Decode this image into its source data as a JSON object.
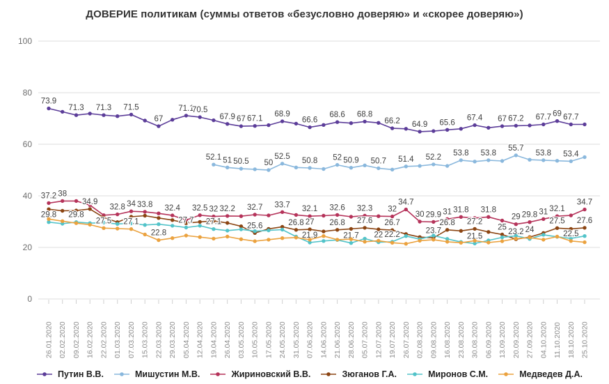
{
  "title": "ДОВЕРИЕ политикам (суммы ответов «безусловно доверяю» и «скорее доверяю»)",
  "chart_data": {
    "type": "line",
    "title": "ДОВЕРИЕ политикам (суммы ответов «безусловно доверяю» и «скорее доверяю»)",
    "xlabel": "",
    "ylabel": "",
    "ylim": [
      0,
      100
    ],
    "y_ticks": [
      0,
      20,
      40,
      60,
      80,
      100
    ],
    "grid": "horizontal",
    "legend_position": "bottom",
    "x": [
      "26.01.2020",
      "02.02.2020",
      "09.02.2020",
      "16.02.2020",
      "22.02.2020",
      "01.03.2020",
      "07.03.2020",
      "15.03.2020",
      "22.03.2020",
      "29.03.2020",
      "05.04.2020",
      "12.04.2020",
      "19.04.2020",
      "26.04.2020",
      "03.05.2020",
      "10.05.2020",
      "17.05.2020",
      "24.05.2020",
      "31.05.2020",
      "07.06.2020",
      "14.06.2020",
      "21.06.2020",
      "28.06.2020",
      "05.07.2020",
      "12.07.2020",
      "19.07.2020",
      "26.07.2020",
      "02.08.2020",
      "09.08.2020",
      "16.08.2020",
      "23.08.2020",
      "30.08.2020",
      "06.09.2020",
      "13.09.2020",
      "20.09.2020",
      "27.09.2020",
      "04.10.2020",
      "11.10.2020",
      "18.10.2020",
      "25.10.2020"
    ],
    "series": [
      {
        "name": "Путин В.В.",
        "color": "#5c3d99",
        "values": [
          73.9,
          72.6,
          71.3,
          71.9,
          71.3,
          70.9,
          71.5,
          69.2,
          67.0,
          69.5,
          71.1,
          70.5,
          69.3,
          67.9,
          67.0,
          67.1,
          67.4,
          68.9,
          68.0,
          66.6,
          67.5,
          68.6,
          68.2,
          68.8,
          68.3,
          66.2,
          66.0,
          64.9,
          65.1,
          65.6,
          66.0,
          67.4,
          66.4,
          67.0,
          67.2,
          67.3,
          67.7,
          69.0,
          67.7,
          67.7
        ],
        "labels": {
          "0": "73.9",
          "2": "71.3",
          "4": "71.3",
          "6": "71.5",
          "8": "67",
          "10": "71.1",
          "11": "70.5",
          "13": "67.9",
          "14": "67",
          "15": "67.1",
          "17": "68.9",
          "19": "66.6",
          "21": "68.6",
          "23": "68.8",
          "25": "66.2",
          "27": "64.9",
          "29": "65.6",
          "31": "67.4",
          "33": "67",
          "34": "67.2",
          "36": "67.7",
          "37": "69",
          "38": "67.7"
        }
      },
      {
        "name": "Мишустин М.В.",
        "color": "#8ab8dd",
        "values": [
          null,
          null,
          null,
          null,
          null,
          null,
          null,
          null,
          null,
          null,
          null,
          null,
          52.1,
          51.0,
          50.5,
          50.3,
          50.0,
          52.5,
          51.0,
          50.8,
          50.4,
          52.0,
          50.9,
          51.8,
          50.7,
          50.2,
          51.4,
          51.6,
          52.2,
          51.6,
          53.8,
          53.3,
          53.8,
          53.5,
          55.7,
          54.0,
          53.8,
          53.6,
          53.4,
          55.0
        ],
        "labels": {
          "12": "52.1",
          "13": "51",
          "14": "50.5",
          "16": "50",
          "17": "52.5",
          "19": "50.8",
          "21": "52",
          "22": "50.9",
          "24": "50.7",
          "26": "51.4",
          "28": "52.2",
          "30": "53.8",
          "32": "53.8",
          "34": "55.7",
          "36": "53.8",
          "38": "53.4"
        }
      },
      {
        "name": "Жириновский В.В.",
        "color": "#b5335a",
        "values": [
          37.2,
          38.0,
          38.0,
          36.4,
          32.5,
          32.8,
          34.0,
          33.8,
          33.2,
          32.4,
          30.6,
          32.5,
          32.0,
          32.2,
          32.1,
          32.7,
          32.4,
          33.7,
          32.6,
          32.1,
          32.3,
          32.6,
          31.9,
          32.3,
          32.1,
          32.0,
          34.7,
          30.0,
          29.9,
          31.0,
          31.8,
          31.4,
          31.8,
          30.4,
          29.0,
          29.8,
          31.0,
          32.1,
          32.4,
          34.7
        ],
        "labels": {
          "0": "37.2",
          "1": "38",
          "5": "32.8",
          "6": "34",
          "7": "33.8",
          "9": "32.4",
          "11": "32.5",
          "12": "32",
          "13": "32.2",
          "15": "32.7",
          "17": "33.7",
          "19": "32.1",
          "21": "32.6",
          "23": "32.3",
          "25": "32",
          "26": "34.7",
          "27": "30",
          "28": "29.9",
          "29": "31",
          "30": "31.8",
          "32": "31.8",
          "34": "29",
          "35": "29.8",
          "36": "31",
          "37": "32.1",
          "39": "34.7"
        }
      },
      {
        "name": "Зюганов Г.А.",
        "color": "#8b4513",
        "values": [
          34.8,
          34.2,
          34.3,
          34.9,
          31.6,
          29.8,
          31.9,
          32.3,
          31.4,
          30.6,
          29.4,
          29.9,
          30.3,
          29.5,
          28.2,
          25.6,
          27.2,
          28.0,
          26.8,
          27.0,
          26.2,
          26.8,
          27.2,
          27.6,
          27.0,
          26.7,
          25.2,
          24.0,
          23.7,
          26.8,
          26.4,
          27.2,
          26.0,
          25.0,
          23.2,
          24.0,
          25.6,
          27.5,
          27.2,
          27.6
        ],
        "labels": {
          "3": "34.9",
          "15": "25.6",
          "18": "26.8",
          "19": "27",
          "21": "26.8",
          "23": "27.6",
          "25": "26.7",
          "28": "23.7",
          "29": "26.8",
          "31": "27.2",
          "33": "25",
          "34": "23.2",
          "35": "24",
          "37": "27.5",
          "39": "27.6"
        }
      },
      {
        "name": "Миронов С.М.",
        "color": "#52c3c9",
        "values": [
          29.8,
          29.2,
          29.8,
          29.4,
          29.6,
          29.1,
          29.3,
          28.7,
          29.0,
          28.4,
          27.7,
          28.4,
          27.1,
          26.5,
          27.0,
          26.3,
          26.6,
          26.9,
          24.2,
          21.9,
          22.5,
          22.9,
          21.7,
          23.4,
          22.0,
          22.2,
          24.4,
          23.2,
          24.6,
          23.3,
          22.1,
          21.5,
          22.7,
          23.9,
          24.5,
          23.3,
          24.9,
          24.1,
          23.5,
          24.4
        ],
        "labels": {
          "0": "29.8",
          "2": "29.8",
          "10": "27.7",
          "12": "27.1",
          "19": "21.9",
          "22": "21.7",
          "24": "22",
          "25": "22.2",
          "31": "21.5"
        }
      },
      {
        "name": "Медведев Д.А.",
        "color": "#eba23f",
        "values": [
          31.0,
          30.2,
          29.4,
          28.8,
          27.5,
          27.3,
          27.1,
          25.0,
          22.8,
          23.6,
          24.6,
          24.0,
          23.4,
          24.2,
          23.2,
          22.4,
          23.0,
          23.6,
          23.8,
          23.0,
          24.4,
          23.0,
          23.2,
          22.2,
          22.6,
          21.8,
          21.4,
          22.6,
          23.0,
          22.2,
          21.8,
          22.6,
          21.9,
          22.4,
          23.4,
          23.8,
          23.0,
          24.2,
          22.5,
          22.0
        ],
        "labels": {
          "4": "27.5",
          "6": "27.1",
          "8": "22.8",
          "38": "22.5"
        }
      }
    ]
  }
}
